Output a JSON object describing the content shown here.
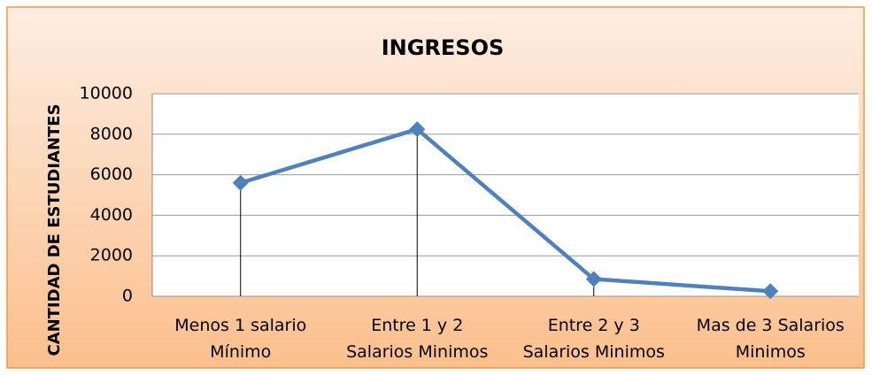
{
  "chart_data": {
    "type": "line",
    "title": "INGRESOS",
    "y_label": "CANTIDAD DE ESTUDIANTES",
    "categories": [
      [
        "Menos 1 salario",
        "Mínimo"
      ],
      [
        "Entre 1 y 2",
        "Salarios Minimos"
      ],
      [
        "Entre 2 y 3",
        "Salarios Minimos"
      ],
      [
        "Mas de 3 Salarios",
        "Minimos"
      ]
    ],
    "series": [
      {
        "name": "INGRESOS",
        "color": "#4f81bd",
        "values": [
          5600,
          8250,
          850,
          250
        ]
      }
    ],
    "ylim": [
      0,
      10000
    ],
    "yticks": [
      0,
      2000,
      4000,
      6000,
      8000,
      10000
    ],
    "grid": true,
    "drop_lines": true
  }
}
